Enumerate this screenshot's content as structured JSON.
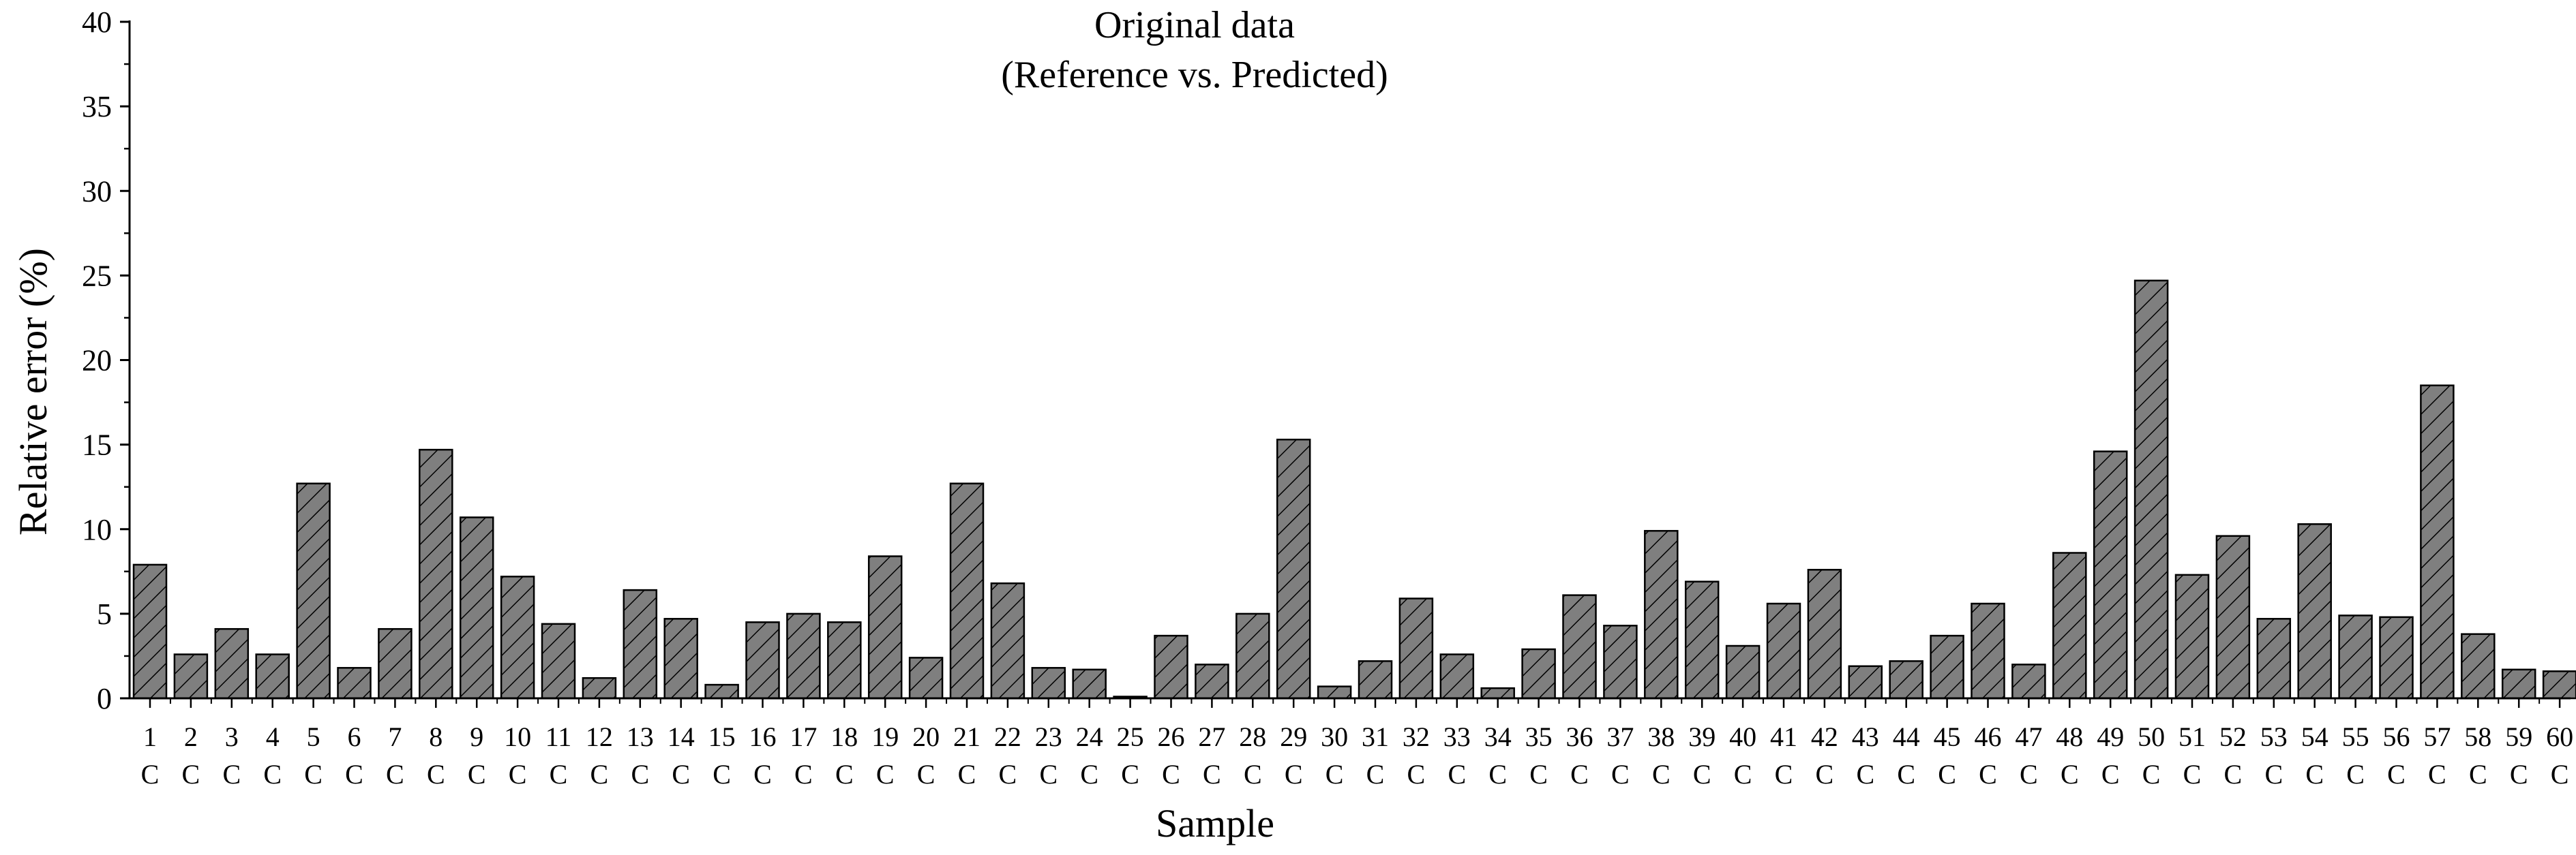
{
  "chart_data": {
    "type": "bar",
    "title": "Original data",
    "subtitle": "(Reference vs. Predicted)",
    "xlabel": "Sample",
    "ylabel": "Relative error (%)",
    "ylim": [
      0,
      40
    ],
    "yticks": [
      0,
      5,
      10,
      15,
      20,
      25,
      30,
      35,
      40
    ],
    "grid": false,
    "legend": "none",
    "bar_fill": "#7f7f7f",
    "bar_hatch": "diagonal",
    "bar_edge": "#000000",
    "category_suffix": "C",
    "categories": [
      "1",
      "2",
      "3",
      "4",
      "5",
      "6",
      "7",
      "8",
      "9",
      "10",
      "11",
      "12",
      "13",
      "14",
      "15",
      "16",
      "17",
      "18",
      "19",
      "20",
      "21",
      "22",
      "23",
      "24",
      "25",
      "26",
      "27",
      "28",
      "29",
      "30",
      "31",
      "32",
      "33",
      "34",
      "35",
      "36",
      "37",
      "38",
      "39",
      "40",
      "41",
      "42",
      "43",
      "44",
      "45",
      "46",
      "47",
      "48",
      "49",
      "50",
      "51",
      "52",
      "53",
      "54",
      "55",
      "56",
      "57",
      "58",
      "59",
      "60"
    ],
    "values": [
      7.9,
      2.6,
      4.1,
      2.6,
      12.7,
      1.8,
      4.1,
      14.7,
      10.7,
      7.2,
      4.4,
      1.2,
      6.4,
      4.7,
      0.8,
      4.5,
      5.0,
      4.5,
      8.4,
      2.4,
      12.7,
      6.8,
      1.8,
      1.7,
      0.1,
      3.7,
      2.0,
      5.0,
      15.3,
      0.7,
      2.2,
      5.9,
      2.6,
      0.6,
      2.9,
      6.1,
      4.3,
      9.9,
      6.9,
      3.1,
      5.6,
      7.6,
      1.9,
      2.2,
      3.7,
      5.6,
      2.0,
      8.6,
      14.6,
      24.7,
      7.3,
      9.6,
      4.7,
      10.3,
      4.9,
      4.8,
      18.5,
      3.8,
      1.7,
      1.6
    ]
  }
}
